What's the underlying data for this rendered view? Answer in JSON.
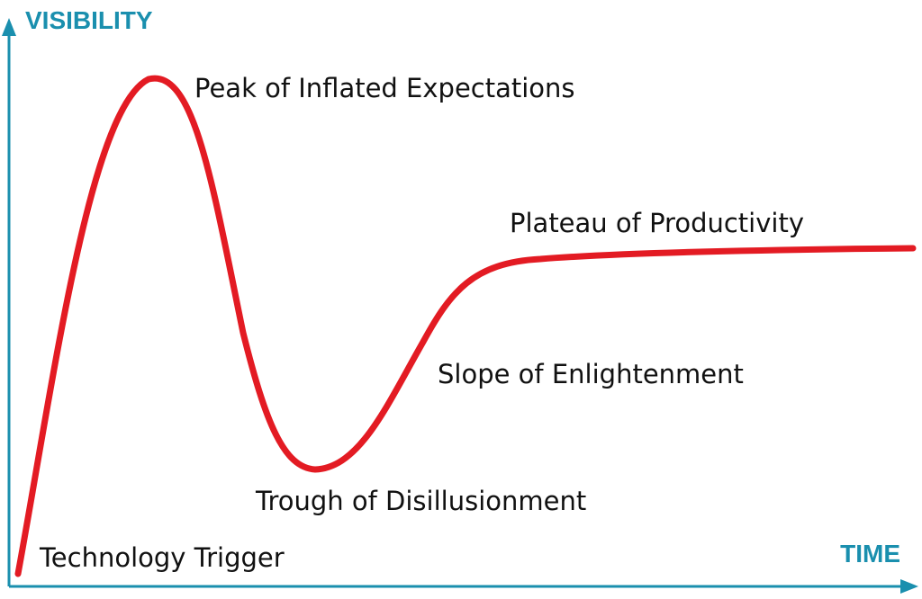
{
  "axes": {
    "y_title": "VISIBILITY",
    "x_title": "TIME",
    "color": "#1a8fae"
  },
  "curve": {
    "color": "#e31b23"
  },
  "phases": [
    {
      "label": "Technology Trigger"
    },
    {
      "label": "Peak of Inflated Expectations"
    },
    {
      "label": "Trough of Disillusionment"
    },
    {
      "label": "Slope of Enlightenment"
    },
    {
      "label": "Plateau of Productivity"
    }
  ]
}
